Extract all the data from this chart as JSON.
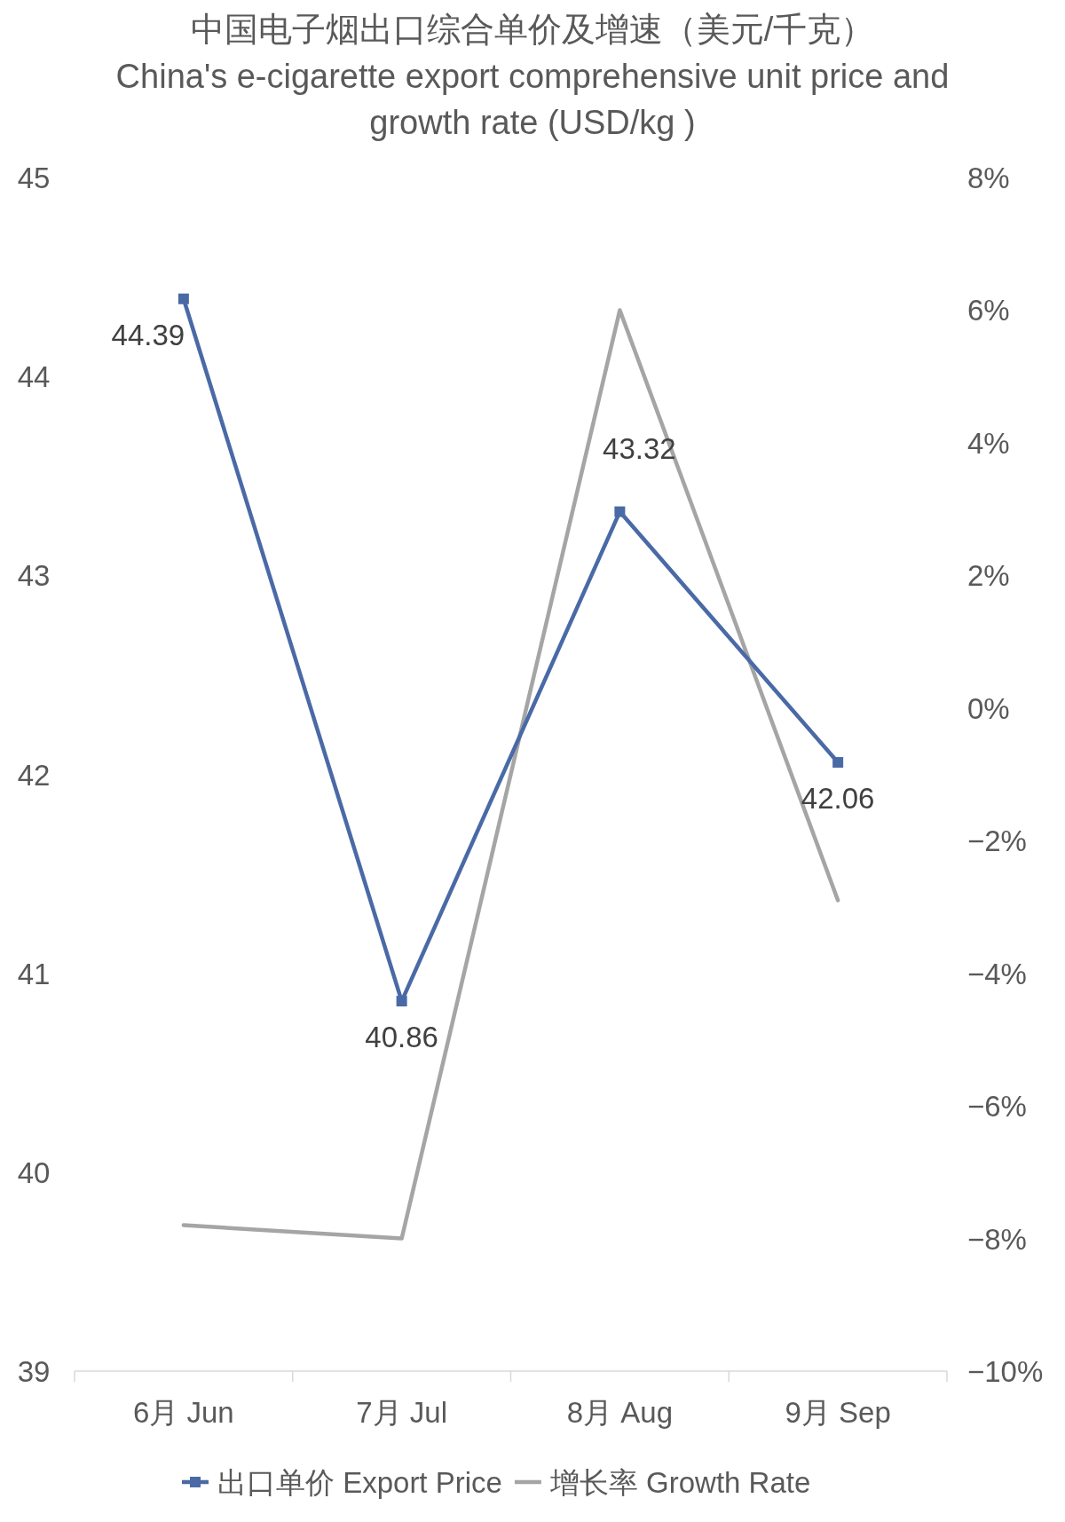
{
  "chart_data": {
    "type": "line",
    "title": "中国电子烟出口综合单价及增速（美元/千克）",
    "subtitle": "China's e-cigarette export comprehensive unit price and growth rate (USD/kg )",
    "categories": [
      "6月 Jun",
      "7月 Jul",
      "8月 Aug",
      "9月 Sep"
    ],
    "series": [
      {
        "name": "出口单价 Export Price",
        "color": "#4a6aa6",
        "marker": "square",
        "values": [
          44.39,
          40.86,
          43.32,
          42.06
        ],
        "value_labels": [
          "44.39",
          "40.86",
          "43.32",
          "42.06"
        ]
      },
      {
        "name": "增长率 Growth Rate",
        "color": "#a5a5a5",
        "marker": "none",
        "axis": "y2",
        "values": [
          -7.8,
          -8.0,
          6.0,
          -2.9
        ]
      }
    ],
    "ylim": [
      39,
      45
    ],
    "yticks": [
      39,
      40,
      41,
      42,
      43,
      44,
      45
    ],
    "y2lim": [
      -10,
      8
    ],
    "y2ticks": [
      {
        "value": -10,
        "label": "−10%"
      },
      {
        "value": -8,
        "label": "−8%"
      },
      {
        "value": -6,
        "label": "−6%"
      },
      {
        "value": -4,
        "label": "−4%"
      },
      {
        "value": -2,
        "label": "−2%"
      },
      {
        "value": 0,
        "label": "0%"
      },
      {
        "value": 2,
        "label": "2%"
      },
      {
        "value": 4,
        "label": "4%"
      },
      {
        "value": 6,
        "label": "6%"
      },
      {
        "value": 8,
        "label": "8%"
      }
    ],
    "legend": "bottom"
  }
}
